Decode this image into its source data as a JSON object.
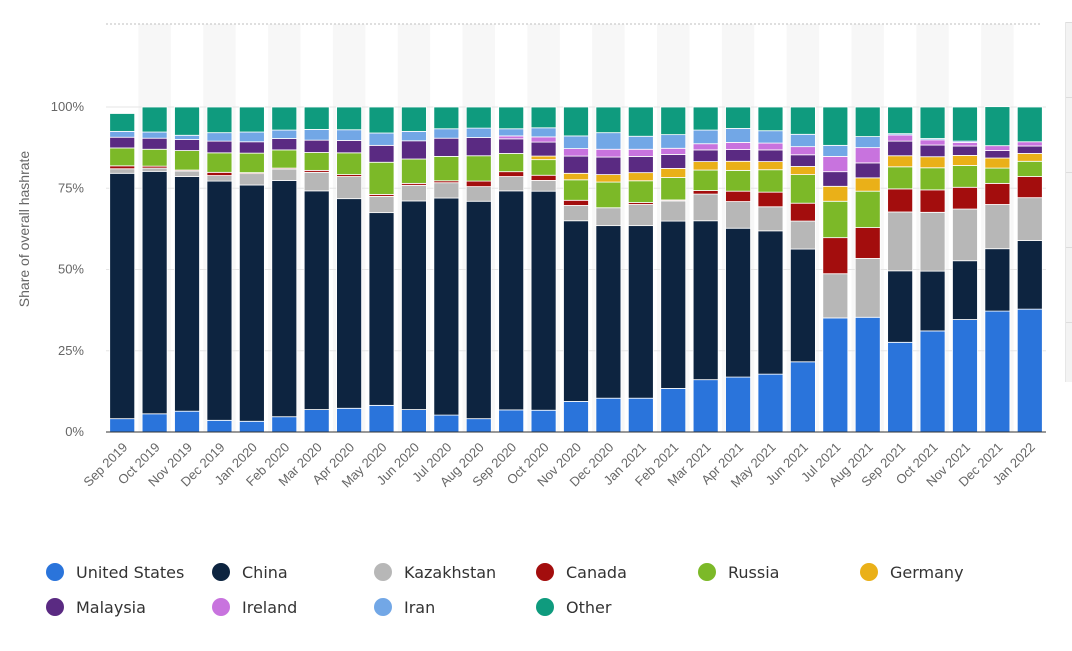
{
  "chart_data": {
    "type": "bar",
    "stacked": true,
    "ylabel": "Share of overall hashrate",
    "xlabel": "",
    "title": "",
    "ylim": [
      0,
      100
    ],
    "yticks": [
      0,
      25,
      50,
      75,
      100
    ],
    "ytick_labels": [
      "0%",
      "25%",
      "50%",
      "75%",
      "100%"
    ],
    "grid": true,
    "legend_position": "bottom",
    "categories": [
      "Sep 2019",
      "Oct 2019",
      "Nov 2019",
      "Dec 2019",
      "Jan 2020",
      "Feb 2020",
      "Mar 2020",
      "Apr 2020",
      "May 2020",
      "Jun 2020",
      "Jul 2020",
      "Aug 2020",
      "Sep 2020",
      "Oct 2020",
      "Nov 2020",
      "Dec 2020",
      "Jan 2021",
      "Feb 2021",
      "Mar 2021",
      "Apr 2021",
      "May 2021",
      "Jun 2021",
      "Jul 2021",
      "Aug 2021",
      "Sep 2021",
      "Oct 2021",
      "Nov 2021",
      "Dec 2021",
      "Jan 2022"
    ],
    "series": [
      {
        "name": "United States",
        "color": "#2a74db",
        "values": [
          4.1,
          5.6,
          6.4,
          3.6,
          3.3,
          4.7,
          6.9,
          7.3,
          8.2,
          6.9,
          5.2,
          4.1,
          6.8,
          6.7,
          9.4,
          10.4,
          10.4,
          13.4,
          16.1,
          16.9,
          17.8,
          21.6,
          35.1,
          35.3,
          27.6,
          31.1,
          34.6,
          37.2,
          37.8
        ]
      },
      {
        "name": "China",
        "color": "#0d2440",
        "values": [
          75.5,
          74.6,
          72.2,
          73.6,
          72.7,
          72.7,
          67.3,
          64.5,
          59.3,
          64.2,
          66.8,
          66.9,
          67.4,
          67.4,
          55.6,
          53.1,
          53.1,
          51.5,
          48.9,
          45.8,
          44.1,
          34.7,
          0,
          0,
          22.0,
          18.4,
          18.1,
          19.2,
          21.1
        ]
      },
      {
        "name": "Kazakhstan",
        "color": "#b7b7b7",
        "values": [
          1.4,
          1.0,
          1.7,
          1.7,
          3.5,
          3.5,
          5.7,
          6.8,
          5.0,
          4.8,
          4.7,
          4.5,
          4.4,
          3.3,
          4.7,
          5.5,
          6.5,
          6.2,
          8.2,
          8.2,
          7.4,
          8.6,
          13.6,
          18.1,
          18.1,
          18.1,
          15.9,
          13.6,
          13.2
        ]
      },
      {
        "name": "Canada",
        "color": "#a30d0d",
        "values": [
          0.9,
          0.6,
          0.3,
          1.0,
          0.3,
          0.3,
          0.6,
          0.6,
          0.6,
          0.6,
          0.6,
          1.7,
          1.5,
          1.6,
          1.6,
          0,
          0.6,
          0.3,
          1.1,
          3.2,
          4.5,
          5.5,
          11.1,
          9.5,
          7.1,
          6.9,
          6.7,
          6.5,
          6.5
        ]
      },
      {
        "name": "Russia",
        "color": "#7cb928",
        "values": [
          5.5,
          5.2,
          6.0,
          6.0,
          6.0,
          5.6,
          5.5,
          6.7,
          9.9,
          7.5,
          7.5,
          7.8,
          5.6,
          4.8,
          6.3,
          7.9,
          6.7,
          6.9,
          6.3,
          6.4,
          6.9,
          8.8,
          11.2,
          11.2,
          6.8,
          6.8,
          6.7,
          4.7,
          4.7
        ]
      },
      {
        "name": "Germany",
        "color": "#eab018",
        "values": [
          0,
          0,
          0,
          0,
          0,
          0,
          0,
          0,
          0,
          0,
          0,
          0,
          0,
          1.1,
          2.0,
          2.3,
          2.5,
          2.8,
          2.6,
          2.8,
          2.5,
          2.5,
          4.6,
          4.1,
          3.4,
          3.4,
          3.1,
          3.1,
          2.4
        ]
      },
      {
        "name": "Malaysia",
        "color": "#5a2a82",
        "values": [
          3.3,
          3.4,
          3.4,
          3.6,
          3.5,
          3.5,
          3.8,
          3.8,
          5.2,
          5.6,
          5.6,
          5.6,
          4.5,
          4.3,
          5.3,
          5.4,
          5.0,
          4.3,
          3.6,
          3.6,
          3.6,
          3.6,
          4.5,
          4.6,
          4.5,
          3.6,
          2.9,
          2.3,
          2.3
        ]
      },
      {
        "name": "Ireland",
        "color": "#c873de",
        "values": [
          0,
          0,
          0,
          0,
          0,
          0,
          0,
          0,
          0,
          0,
          0,
          0,
          0.9,
          1.6,
          2.3,
          2.4,
          2.2,
          1.9,
          1.9,
          2.2,
          2.1,
          2.5,
          4.7,
          4.7,
          1.9,
          1.6,
          1.1,
          1.5,
          1.3
        ]
      },
      {
        "name": "Iran",
        "color": "#72a7e6",
        "values": [
          1.8,
          1.9,
          1.3,
          2.6,
          3.0,
          2.6,
          3.3,
          3.3,
          3.8,
          2.9,
          2.9,
          2.9,
          2.2,
          2.8,
          3.9,
          5.1,
          4.0,
          4.2,
          4.2,
          4.3,
          3.8,
          3.8,
          3.4,
          3.4,
          0.4,
          0.4,
          0.4,
          0,
          0
        ]
      },
      {
        "name": "Other",
        "color": "#0f9b7e",
        "values": [
          5.5,
          7.7,
          8.7,
          7.9,
          7.7,
          7.1,
          6.9,
          7.0,
          8.0,
          7.5,
          6.7,
          6.5,
          6.7,
          6.4,
          8.9,
          7.9,
          9.0,
          8.5,
          7.1,
          6.6,
          7.3,
          8.4,
          11.8,
          9.1,
          8.2,
          9.7,
          10.5,
          12.0,
          10.7
        ]
      }
    ]
  }
}
